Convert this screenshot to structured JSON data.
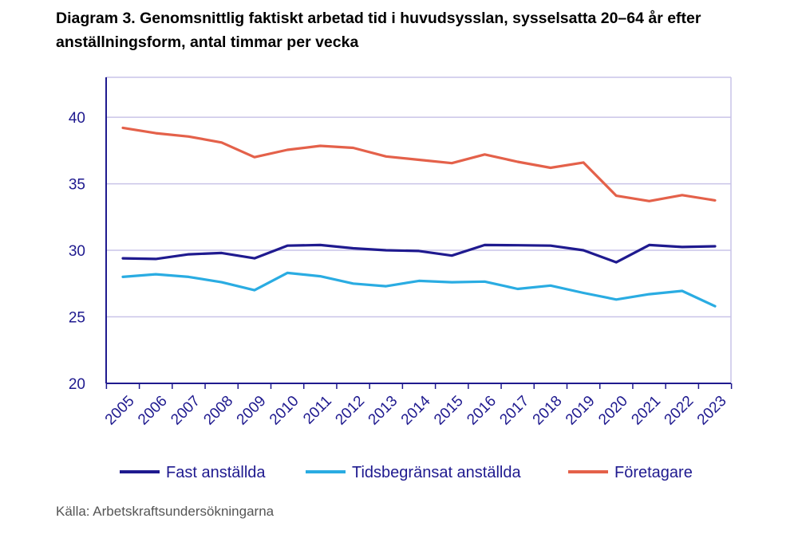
{
  "title": "Diagram 3. Genomsnittlig faktiskt arbetad tid i huvudsysslan, sysselsatta 20–64 år efter anställningsform, antal timmar per vecka",
  "source": "Källa: Arbetskraftsundersökningarna",
  "chart_data": {
    "type": "line",
    "x": [
      "2005",
      "2006",
      "2007",
      "2008",
      "2009",
      "2010",
      "2011",
      "2012",
      "2013",
      "2014",
      "2015",
      "2016",
      "2017",
      "2018",
      "2019",
      "2020",
      "2021",
      "2022",
      "2023"
    ],
    "ylim": [
      20,
      43
    ],
    "yticks": [
      20,
      25,
      30,
      35,
      40
    ],
    "grid": true,
    "legend_position": "bottom",
    "series": [
      {
        "name": "Fast anställda",
        "color": "#1f1a8f",
        "values": [
          29.4,
          29.35,
          29.7,
          29.8,
          29.4,
          30.35,
          30.4,
          30.15,
          30.0,
          29.95,
          29.6,
          30.4,
          30.38,
          30.35,
          30.0,
          29.1,
          30.4,
          30.25,
          30.3
        ]
      },
      {
        "name": "Tidsbegränsat anställda",
        "color": "#2aace2",
        "values": [
          28.0,
          28.2,
          28.0,
          27.6,
          27.0,
          28.3,
          28.05,
          27.5,
          27.3,
          27.7,
          27.6,
          27.65,
          27.1,
          27.35,
          26.8,
          26.3,
          26.7,
          26.95,
          25.8
        ]
      },
      {
        "name": "Företagare",
        "color": "#e4614a",
        "values": [
          39.2,
          38.8,
          38.55,
          38.1,
          37.0,
          37.55,
          37.85,
          37.7,
          37.05,
          36.8,
          36.55,
          37.2,
          36.65,
          36.2,
          36.6,
          34.1,
          33.7,
          34.15,
          33.75
        ]
      }
    ]
  }
}
